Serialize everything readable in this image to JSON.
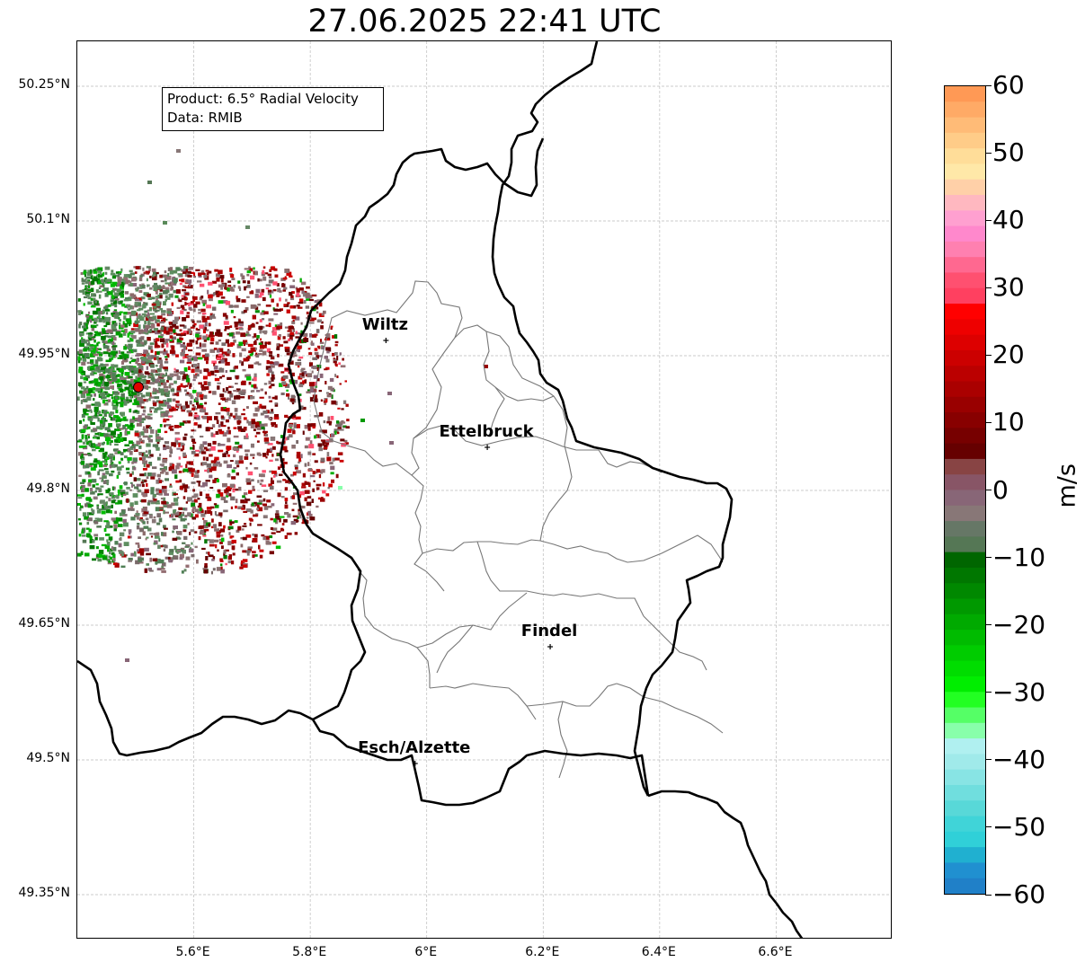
{
  "title": "27.06.2025 22:41 UTC",
  "info_box": {
    "product": "Product: 6.5° Radial Velocity",
    "data": "Data: RMIB"
  },
  "axes": {
    "lat_labels": [
      "50.25°N",
      "50.1°N",
      "49.95°N",
      "49.8°N",
      "49.65°N",
      "49.5°N",
      "49.35°N"
    ],
    "lat_values": [
      50.25,
      50.1,
      49.95,
      49.8,
      49.65,
      49.5,
      49.35
    ],
    "lon_labels": [
      "5.6°E",
      "5.8°E",
      "6°E",
      "6.2°E",
      "6.4°E",
      "6.6°E"
    ],
    "lon_values": [
      5.6,
      5.8,
      6.0,
      6.2,
      6.4,
      6.6
    ],
    "lon_range": [
      5.4,
      6.8
    ],
    "lat_range": [
      49.3,
      50.3
    ],
    "grid": true
  },
  "cities": [
    {
      "name": "Wiltz",
      "lon": 5.93,
      "lat": 49.967
    },
    {
      "name": "Ettelbruck",
      "lon": 6.104,
      "lat": 49.848
    },
    {
      "name": "Findel",
      "lon": 6.212,
      "lat": 49.626
    },
    {
      "name": "Esch/Alzette",
      "lon": 5.98,
      "lat": 49.496
    }
  ],
  "radar_site": {
    "lon": 5.505,
    "lat": 49.915,
    "color": "#e00000"
  },
  "colorbar": {
    "unit": "m/s",
    "min": -60,
    "max": 60,
    "tick_labels": [
      "60",
      "50",
      "40",
      "30",
      "20",
      "10",
      "0",
      "−10",
      "−20",
      "−30",
      "−40",
      "−50",
      "−60"
    ],
    "tick_values": [
      60,
      50,
      40,
      30,
      20,
      10,
      0,
      -10,
      -20,
      -30,
      -40,
      -50,
      -60
    ],
    "colors_top_to_bottom": [
      "#ff9955",
      "#ffaa66",
      "#ffbb77",
      "#ffcc88",
      "#ffdd99",
      "#ffe8a8",
      "#ffd0a8",
      "#ffb8c0",
      "#ffa0d0",
      "#ff88cc",
      "#ff80b0",
      "#ff6890",
      "#ff5070",
      "#ff4060",
      "#ff0000",
      "#ee0000",
      "#dd0000",
      "#cc0000",
      "#bb0000",
      "#aa0000",
      "#990000",
      "#880000",
      "#770000",
      "#660000",
      "#884444",
      "#885566",
      "#886677",
      "#887777",
      "#667766",
      "#557755",
      "#006600",
      "#007700",
      "#008800",
      "#009900",
      "#00aa00",
      "#00bb00",
      "#00cc00",
      "#00dd00",
      "#00ee00",
      "#22ff22",
      "#55ff66",
      "#88ffaa",
      "#b0f0f0",
      "#a0eaea",
      "#88e4e4",
      "#70dede",
      "#58d8d8",
      "#40d4d8",
      "#30d0d8",
      "#20b0d0",
      "#2090d0",
      "#2080c8"
    ]
  },
  "colors": {
    "approach_green": "#008800",
    "recede_red": "#880000",
    "near_zero_green": "#5a8a5a",
    "near_zero_mauve": "#8a6a6a"
  }
}
